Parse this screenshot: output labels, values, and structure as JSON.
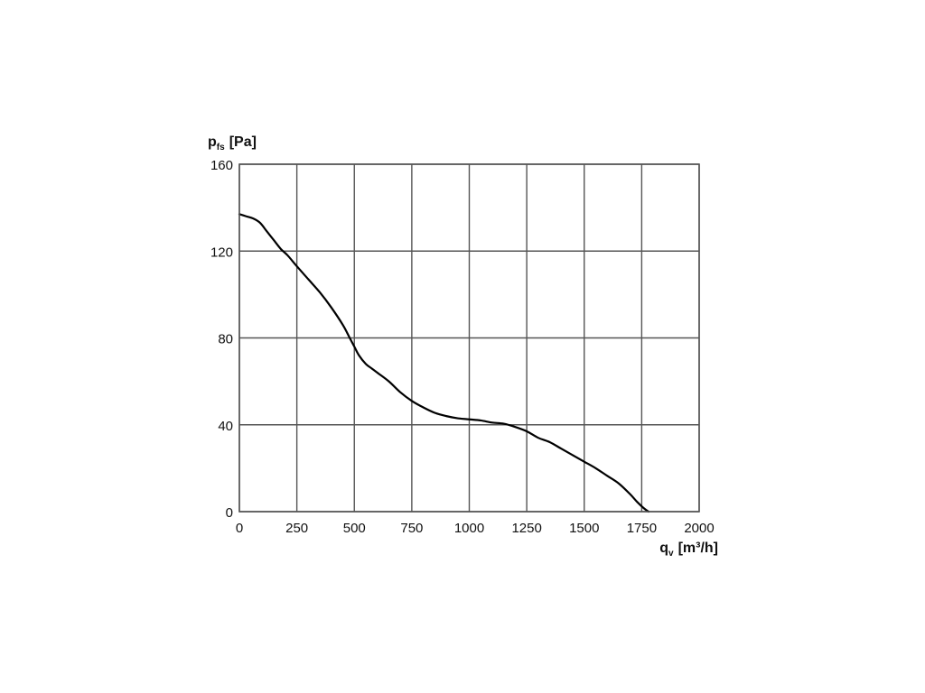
{
  "chart_data": {
    "type": "line",
    "ylabel": {
      "symbol": "p",
      "subscript": "fs",
      "unit": "[Pa]"
    },
    "xlabel": {
      "symbol": "q",
      "subscript": "v",
      "unit": "[m³/h]"
    },
    "xlim": [
      0,
      2000
    ],
    "ylim": [
      0,
      160
    ],
    "x_ticks": [
      0,
      250,
      500,
      750,
      1000,
      1250,
      1500,
      1750,
      2000
    ],
    "y_ticks": [
      0,
      40,
      80,
      120,
      160
    ],
    "grid": true,
    "line_color": "#000000",
    "grid_color": "#555555",
    "series": [
      {
        "x": [
          0,
          30,
          60,
          90,
          120,
          150,
          180,
          210,
          250,
          300,
          350,
          400,
          450,
          480,
          500,
          520,
          550,
          575,
          600,
          650,
          700,
          750,
          800,
          850,
          900,
          950,
          1000,
          1050,
          1100,
          1150,
          1200,
          1250,
          1300,
          1350,
          1400,
          1450,
          1500,
          1550,
          1600,
          1650,
          1700,
          1730,
          1760,
          1780
        ],
        "y": [
          137,
          136,
          135,
          133,
          129,
          125,
          121,
          118,
          113,
          107,
          101,
          94,
          86,
          80,
          76,
          72,
          68,
          66,
          64,
          60,
          55,
          51,
          48,
          45.5,
          44,
          43,
          42.5,
          42,
          41,
          40.5,
          39,
          37,
          34,
          32,
          29,
          26,
          23,
          20,
          16.5,
          13,
          8,
          4.5,
          1.5,
          0
        ]
      }
    ]
  }
}
